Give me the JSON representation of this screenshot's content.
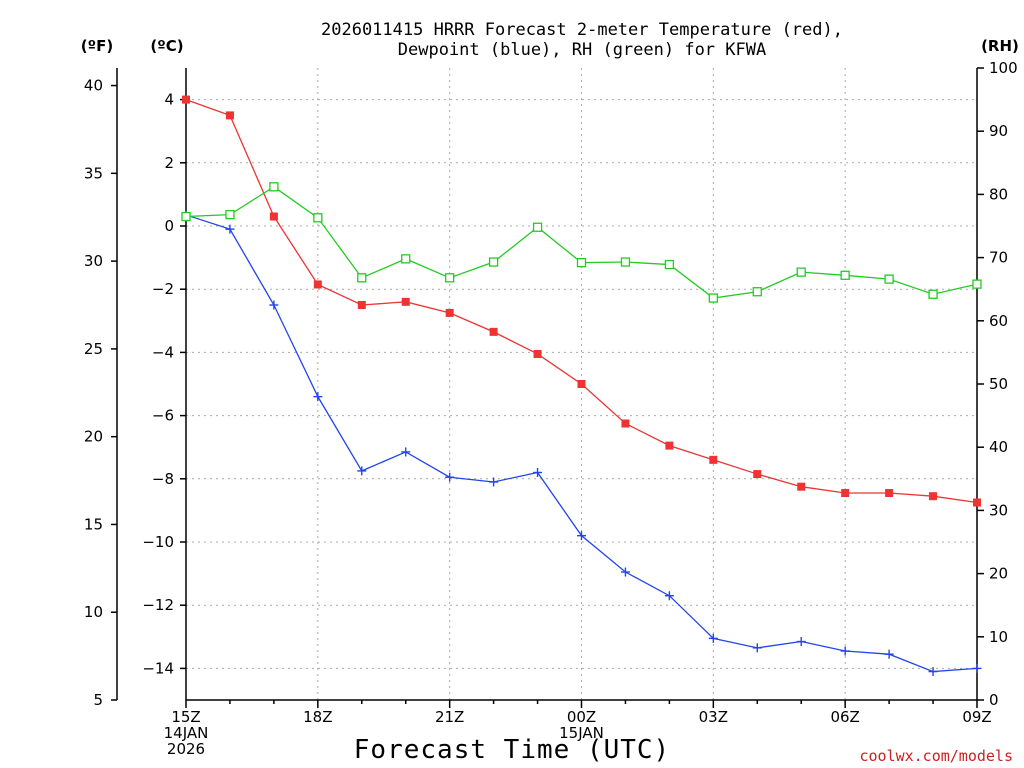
{
  "chart_data": {
    "type": "line",
    "title_lines": [
      "2026011415 HRRR Forecast 2-meter Temperature (red),",
      "Dewpoint (blue), RH (green) for KFWA"
    ],
    "unit_labels": {
      "fahrenheit": "(ºF)",
      "celsius": "(ºC)",
      "rh": "(RH)"
    },
    "xlabel": "Forecast Time (UTC)",
    "credit": "coolwx.com/models",
    "x_hours": [
      0,
      1,
      2,
      3,
      4,
      5,
      6,
      7,
      8,
      9,
      10,
      11,
      12,
      13,
      14,
      15,
      16,
      17,
      18
    ],
    "xlim": [
      0,
      18
    ],
    "x_ticks": [
      {
        "hour": 0,
        "lines": [
          "15Z",
          "14JAN",
          "2026"
        ]
      },
      {
        "hour": 3,
        "lines": [
          "18Z"
        ]
      },
      {
        "hour": 6,
        "lines": [
          "21Z"
        ]
      },
      {
        "hour": 9,
        "lines": [
          "00Z",
          "15JAN"
        ]
      },
      {
        "hour": 12,
        "lines": [
          "03Z"
        ]
      },
      {
        "hour": 15,
        "lines": [
          "06Z"
        ]
      },
      {
        "hour": 18,
        "lines": [
          "09Z"
        ]
      }
    ],
    "celsius_axis": {
      "ylim": [
        -15,
        5
      ],
      "ticks": [
        4,
        2,
        0,
        -2,
        -4,
        -6,
        -8,
        -10,
        -12,
        -14
      ]
    },
    "fahrenheit_axis": {
      "ylim": [
        5,
        41
      ],
      "ticks": [
        40,
        35,
        30,
        25,
        20,
        15,
        10,
        5
      ]
    },
    "rh_axis": {
      "ylim": [
        0,
        100
      ],
      "ticks": [
        100,
        90,
        80,
        70,
        60,
        50,
        40,
        30,
        20,
        10,
        0
      ]
    },
    "series": [
      {
        "name": "Temperature",
        "units": "C",
        "color": "#ee3333",
        "marker": "filled-square",
        "values": [
          4.0,
          3.5,
          0.3,
          -1.85,
          -2.5,
          -2.4,
          -2.75,
          -3.35,
          -4.05,
          -5.0,
          -6.25,
          -6.95,
          -7.4,
          -7.85,
          -8.25,
          -8.45,
          -8.45,
          -8.55,
          -8.75
        ]
      },
      {
        "name": "Dewpoint",
        "units": "C",
        "color": "#2244ee",
        "marker": "plus",
        "values": [
          0.35,
          -0.1,
          -2.5,
          -5.4,
          -7.75,
          -7.15,
          -7.95,
          -8.1,
          -7.8,
          -9.8,
          -10.95,
          -11.7,
          -13.05,
          -13.35,
          -13.15,
          -13.45,
          -13.55,
          -14.1,
          -14.0
        ]
      },
      {
        "name": "RH",
        "units": "%",
        "color": "#22cc22",
        "marker": "open-square",
        "values": [
          76.5,
          76.8,
          81.2,
          76.3,
          66.8,
          69.8,
          66.8,
          69.3,
          74.8,
          69.2,
          69.3,
          68.9,
          63.6,
          64.6,
          67.7,
          67.2,
          66.6,
          64.2,
          65.8
        ]
      }
    ]
  }
}
